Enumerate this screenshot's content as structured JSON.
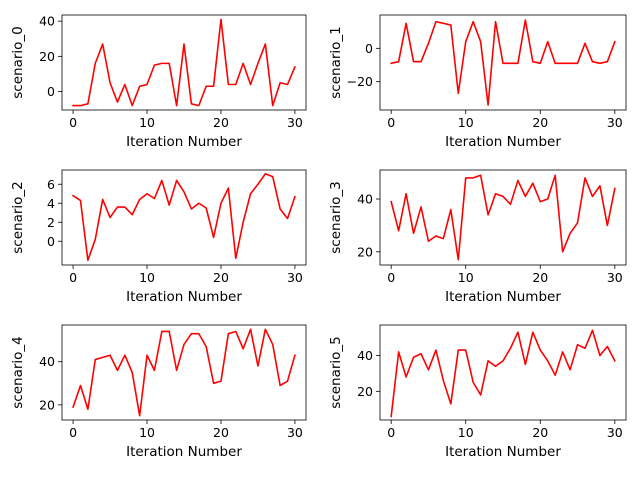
{
  "chart_data": [
    {
      "type": "line",
      "ylabel": "scenario_0",
      "xlabel": "Iteration Number",
      "color": "#ff0000",
      "xlim": [
        -1.5,
        31.5
      ],
      "ylim": [
        -10.5,
        43.5
      ],
      "xticks": [
        0,
        10,
        20,
        30
      ],
      "yticks": [
        0,
        20,
        40
      ],
      "x": [
        0,
        1,
        2,
        3,
        4,
        5,
        6,
        7,
        8,
        9,
        10,
        11,
        12,
        13,
        14,
        15,
        16,
        17,
        18,
        19,
        20,
        21,
        22,
        23,
        24,
        25,
        26,
        27,
        28,
        29,
        30
      ],
      "values": [
        -8,
        -8,
        -7,
        16,
        27,
        5,
        -6,
        4,
        -8,
        3,
        4,
        15,
        16,
        16,
        -8,
        27,
        -7,
        -8,
        3,
        3,
        41,
        4,
        4,
        16,
        4,
        16,
        27,
        -8,
        5,
        4,
        14
      ]
    },
    {
      "type": "line",
      "ylabel": "scenario_1",
      "xlabel": "Iteration Number",
      "color": "#ff0000",
      "xlim": [
        -1.5,
        31.5
      ],
      "ylim": [
        -37,
        20
      ],
      "xticks": [
        0,
        10,
        20,
        30
      ],
      "yticks": [
        -20,
        0
      ],
      "x": [
        0,
        1,
        2,
        3,
        4,
        5,
        6,
        7,
        8,
        9,
        10,
        11,
        12,
        13,
        14,
        15,
        16,
        17,
        18,
        19,
        20,
        21,
        22,
        23,
        24,
        25,
        26,
        27,
        28,
        29,
        30
      ],
      "values": [
        -9,
        -8,
        15,
        -8,
        -8,
        3,
        16,
        15,
        14,
        -27,
        4,
        16,
        4,
        -34,
        16,
        -9,
        -9,
        -9,
        17,
        -8,
        -9,
        4,
        -9,
        -9,
        -9,
        -9,
        3,
        -8,
        -9,
        -8,
        4
      ]
    },
    {
      "type": "line",
      "ylabel": "scenario_2",
      "xlabel": "Iteration Number",
      "color": "#ff0000",
      "xlim": [
        -1.5,
        31.5
      ],
      "ylim": [
        -2.5,
        7.5
      ],
      "xticks": [
        0,
        10,
        20,
        30
      ],
      "yticks": [
        0,
        2,
        4,
        6
      ],
      "x": [
        0,
        1,
        2,
        3,
        4,
        5,
        6,
        7,
        8,
        9,
        10,
        11,
        12,
        13,
        14,
        15,
        16,
        17,
        18,
        19,
        20,
        21,
        22,
        23,
        24,
        25,
        26,
        27,
        28,
        29,
        30
      ],
      "values": [
        4.8,
        4.3,
        -2.0,
        0.2,
        4.4,
        2.5,
        3.6,
        3.6,
        2.8,
        4.4,
        5.0,
        4.5,
        6.4,
        3.8,
        6.4,
        5.2,
        3.4,
        4.0,
        3.5,
        0.4,
        4.0,
        5.6,
        -1.8,
        2.0,
        5.0,
        6.0,
        7.1,
        6.8,
        3.4,
        2.4,
        4.7
      ]
    },
    {
      "type": "line",
      "ylabel": "scenario_3",
      "xlabel": "Iteration Number",
      "color": "#ff0000",
      "xlim": [
        -1.5,
        31.5
      ],
      "ylim": [
        15,
        51
      ],
      "xticks": [
        0,
        10,
        20,
        30
      ],
      "yticks": [
        20,
        40
      ],
      "x": [
        0,
        1,
        2,
        3,
        4,
        5,
        6,
        7,
        8,
        9,
        10,
        11,
        12,
        13,
        14,
        15,
        16,
        17,
        18,
        19,
        20,
        21,
        22,
        23,
        24,
        25,
        26,
        27,
        28,
        29,
        30
      ],
      "values": [
        39,
        28,
        42,
        27,
        37,
        24,
        26,
        25,
        36,
        17,
        48,
        48,
        49,
        34,
        42,
        41,
        38,
        47,
        41,
        46,
        39,
        40,
        49,
        20,
        27,
        31,
        48,
        41,
        45,
        30,
        44
      ]
    },
    {
      "type": "line",
      "ylabel": "scenario_4",
      "xlabel": "Iteration Number",
      "color": "#ff0000",
      "xlim": [
        -1.5,
        31.5
      ],
      "ylim": [
        13,
        57
      ],
      "xticks": [
        0,
        10,
        20,
        30
      ],
      "yticks": [
        20,
        40
      ],
      "x": [
        0,
        1,
        2,
        3,
        4,
        5,
        6,
        7,
        8,
        9,
        10,
        11,
        12,
        13,
        14,
        15,
        16,
        17,
        18,
        19,
        20,
        21,
        22,
        23,
        24,
        25,
        26,
        27,
        28,
        29,
        30
      ],
      "values": [
        19,
        29,
        18,
        41,
        42,
        43,
        36,
        43,
        35,
        15,
        43,
        36,
        54,
        54,
        36,
        48,
        53,
        53,
        47,
        30,
        31,
        53,
        54,
        46,
        55,
        38,
        55,
        48,
        29,
        31,
        43
      ]
    },
    {
      "type": "line",
      "ylabel": "scenario_5",
      "xlabel": "Iteration Number",
      "color": "#ff0000",
      "xlim": [
        -1.5,
        31.5
      ],
      "ylim": [
        4,
        57
      ],
      "xticks": [
        0,
        10,
        20,
        30
      ],
      "yticks": [
        20,
        40
      ],
      "x": [
        0,
        1,
        2,
        3,
        4,
        5,
        6,
        7,
        8,
        9,
        10,
        11,
        12,
        13,
        14,
        15,
        16,
        17,
        18,
        19,
        20,
        21,
        22,
        23,
        24,
        25,
        26,
        27,
        28,
        29,
        30
      ],
      "values": [
        6,
        42,
        28,
        39,
        41,
        32,
        43,
        26,
        13,
        43,
        43,
        25,
        18,
        37,
        34,
        37,
        44,
        53,
        35,
        53,
        43,
        37,
        29,
        42,
        32,
        46,
        44,
        54,
        40,
        45,
        37
      ]
    }
  ]
}
